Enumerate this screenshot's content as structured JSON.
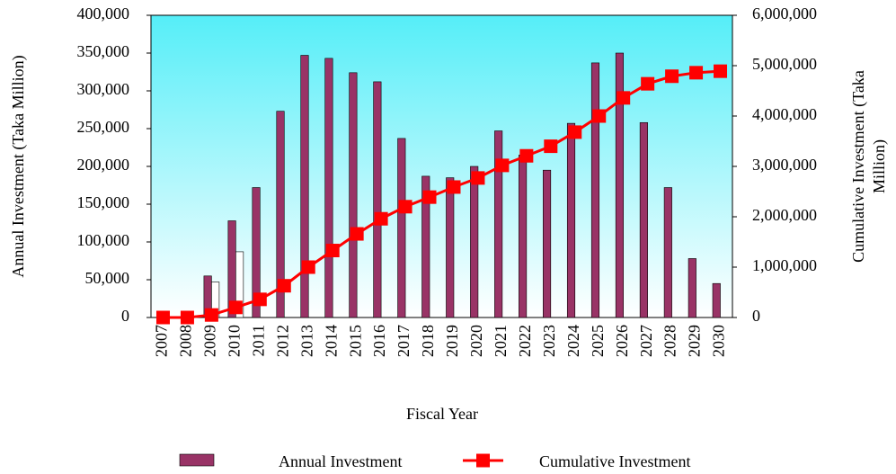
{
  "chart_data": {
    "type": "bar",
    "xlabel": "Fiscal Year",
    "ylabel": "Annual Investment (Taka Million)",
    "y2label": [
      "Cumulative Investment (Taka",
      "Million)"
    ],
    "categories": [
      "2007",
      "2008",
      "2009",
      "2010",
      "2011",
      "2012",
      "2013",
      "2014",
      "2015",
      "2016",
      "2017",
      "2018",
      "2019",
      "2020",
      "2021",
      "2022",
      "2023",
      "2024",
      "2025",
      "2026",
      "2027",
      "2028",
      "2029",
      "2030"
    ],
    "series": [
      {
        "name": "Annual Investment",
        "color": "#993366",
        "type": "bar",
        "values": [
          0,
          0,
          55000,
          128000,
          172000,
          273000,
          347000,
          343000,
          324000,
          312000,
          237000,
          187000,
          185000,
          200000,
          247000,
          215000,
          195000,
          257000,
          337000,
          350000,
          258000,
          172000,
          78000,
          45000
        ]
      },
      {
        "color": "#ffffff",
        "type": "bar",
        "values": [
          null,
          null,
          47000,
          87000,
          null,
          null,
          null,
          null,
          null,
          null,
          null,
          null,
          null,
          null,
          null,
          null,
          null,
          null,
          null,
          null,
          null,
          null,
          null,
          null
        ]
      },
      {
        "name": "Cumulative Investment",
        "color": "#ff0000",
        "type": "line",
        "axis": "y2",
        "values": [
          0,
          0,
          50000,
          200000,
          360000,
          630000,
          1000000,
          1330000,
          1660000,
          1960000,
          2200000,
          2390000,
          2590000,
          2770000,
          3020000,
          3210000,
          3400000,
          3680000,
          4000000,
          4360000,
          4640000,
          4790000,
          4860000,
          4890000
        ]
      }
    ],
    "ylim": [
      0,
      400000
    ],
    "yticks": [
      0,
      {
        "value": 50000,
        "label": "50,000"
      },
      {
        "value": 100000,
        "label": "100,000"
      },
      {
        "value": 150000,
        "label": "150,000"
      },
      {
        "value": 200000,
        "label": "200,000"
      },
      {
        "value": 250000,
        "label": "250,000"
      },
      {
        "value": 300000,
        "label": "300,000"
      },
      {
        "value": 350000,
        "label": "350,000"
      },
      {
        "value": 400000,
        "label": "400,000"
      }
    ],
    "y2lim": [
      0,
      6000000
    ],
    "y2ticks": [
      0,
      {
        "value": 1000000,
        "label": "1,000,000"
      },
      {
        "value": 2000000,
        "label": "2,000,000"
      },
      {
        "value": 3000000,
        "label": "3,000,000"
      },
      {
        "value": 4000000,
        "label": "4,000,000"
      },
      {
        "value": 5000000,
        "label": "5,000,000"
      },
      {
        "value": 6000000,
        "label": "6,000,000"
      }
    ],
    "grid": false
  }
}
